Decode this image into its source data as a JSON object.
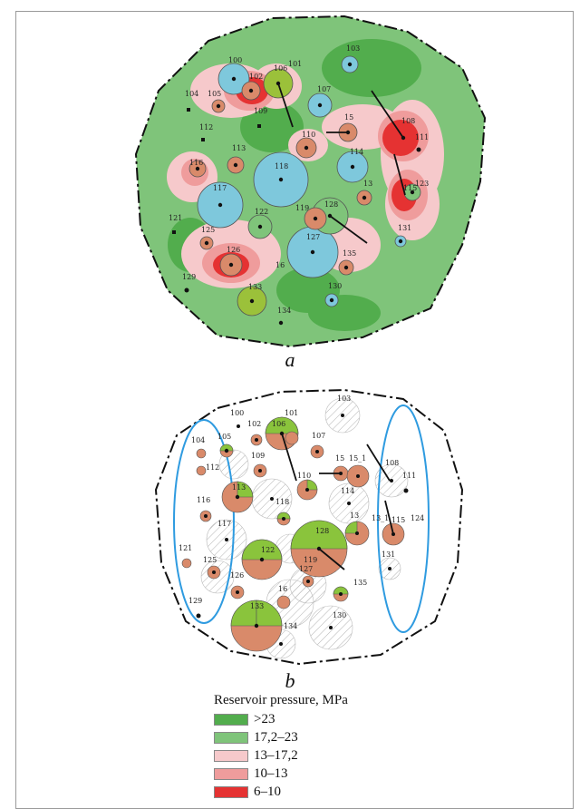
{
  "panels": [
    {
      "id": "a",
      "caption": "a"
    },
    {
      "id": "b",
      "caption": "b"
    }
  ],
  "legend": {
    "title": "Reservoir pressure, MPa",
    "items": [
      {
        "label": ">23",
        "color": "#52ad4d"
      },
      {
        "label": "17,2–23",
        "color": "#7fc47a"
      },
      {
        "label": "13–17,2",
        "color": "#f6c9cb"
      },
      {
        "label": "10–13",
        "color": "#ef9c9c"
      },
      {
        "label": "6–10",
        "color": "#e53232"
      }
    ]
  },
  "colors": {
    "field_outline": "#111111",
    "well_circle_blue": "#7ec8dc",
    "well_circle_olive": "#9bc13a",
    "well_circle_brown": "#d98a6a",
    "zone_outline": "#2f9be0",
    "hatch": "#b5b5b5"
  },
  "map_a_wells": [
    "100",
    "101",
    "102",
    "103",
    "104",
    "105",
    "106",
    "107",
    "108",
    "109",
    "110",
    "111",
    "112",
    "113",
    "114",
    "115",
    "116",
    "117",
    "118",
    "119",
    "121",
    "122",
    "123",
    "125",
    "126",
    "127",
    "128",
    "129",
    "130",
    "131",
    "133",
    "134",
    "135",
    "13",
    "15",
    "16"
  ],
  "map_b_wells": [
    "100",
    "101",
    "102",
    "103",
    "104",
    "105",
    "106",
    "107",
    "108",
    "109",
    "110",
    "111",
    "112",
    "113",
    "114",
    "115",
    "116",
    "117",
    "118",
    "119",
    "121",
    "122",
    "124",
    "125",
    "126",
    "127",
    "128",
    "129",
    "130",
    "131",
    "133",
    "134",
    "135",
    "13",
    "13_1",
    "15",
    "15_1",
    "16"
  ]
}
